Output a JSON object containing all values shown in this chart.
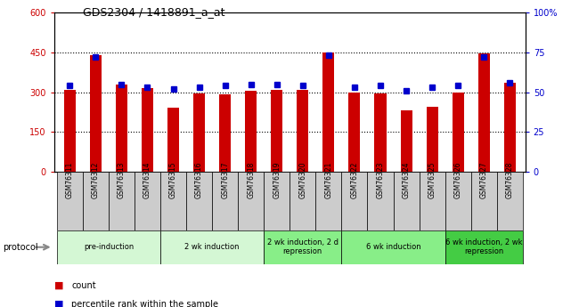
{
  "title": "GDS2304 / 1418891_a_at",
  "samples": [
    "GSM76311",
    "GSM76312",
    "GSM76313",
    "GSM76314",
    "GSM76315",
    "GSM76316",
    "GSM76317",
    "GSM76318",
    "GSM76319",
    "GSM76320",
    "GSM76321",
    "GSM76322",
    "GSM76323",
    "GSM76324",
    "GSM76325",
    "GSM76326",
    "GSM76327",
    "GSM76328"
  ],
  "counts": [
    310,
    440,
    330,
    315,
    240,
    295,
    290,
    305,
    310,
    310,
    450,
    300,
    295,
    230,
    245,
    300,
    445,
    335
  ],
  "percentiles": [
    54,
    72,
    55,
    53,
    52,
    53,
    54,
    55,
    55,
    54,
    73,
    53,
    54,
    51,
    53,
    54,
    72,
    56
  ],
  "ylim_left": [
    0,
    600
  ],
  "ylim_right": [
    0,
    100
  ],
  "yticks_left": [
    0,
    150,
    300,
    450,
    600
  ],
  "ytick_labels_left": [
    "0",
    "150",
    "300",
    "450",
    "600"
  ],
  "ytick_labels_right": [
    "0",
    "25",
    "50",
    "75",
    "100%"
  ],
  "bar_color": "#cc0000",
  "dot_color": "#0000cc",
  "protocol_groups": [
    {
      "label": "pre-induction",
      "start": 0,
      "end": 3,
      "color": "#d4f7d4"
    },
    {
      "label": "2 wk induction",
      "start": 4,
      "end": 7,
      "color": "#d4f7d4"
    },
    {
      "label": "2 wk induction, 2 d\nrepression",
      "start": 8,
      "end": 10,
      "color": "#88ee88"
    },
    {
      "label": "6 wk induction",
      "start": 11,
      "end": 14,
      "color": "#88ee88"
    },
    {
      "label": "6 wk induction, 2 wk\nrepression",
      "start": 15,
      "end": 17,
      "color": "#44cc44"
    }
  ],
  "legend_count_label": "count",
  "legend_pct_label": "percentile rank within the sample",
  "protocol_label": "protocol",
  "bar_width": 0.45,
  "grid_yticks": [
    150,
    300,
    450
  ]
}
